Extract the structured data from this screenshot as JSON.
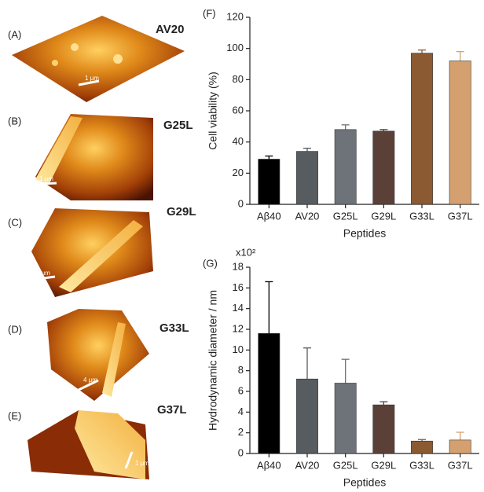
{
  "images": [
    {
      "label": "(A)",
      "name": "AV20",
      "scale_bar": "1 μm"
    },
    {
      "label": "(B)",
      "name": "G25L",
      "scale_bar": "1 μm"
    },
    {
      "label": "(C)",
      "name": "G29L",
      "scale_bar": "2 μm"
    },
    {
      "label": "(D)",
      "name": "G33L",
      "scale_bar": "4 μm"
    },
    {
      "label": "(E)",
      "name": "G37L",
      "scale_bar": "1 μm"
    }
  ],
  "chart_data": [
    {
      "type": "bar",
      "panel_label": "(F)",
      "y_label": "Cell viability (%)",
      "x_label": "Peptides",
      "categories": [
        "Aβ40",
        "AV20",
        "G25L",
        "G29L",
        "G33L",
        "G37L"
      ],
      "values": [
        29,
        34,
        48,
        47,
        97,
        92
      ],
      "errors": [
        2,
        2,
        3,
        1,
        2,
        6
      ],
      "colors": [
        "#000000",
        "#575c60",
        "#6d7378",
        "#5b4038",
        "#8b5a33",
        "#d4a070"
      ],
      "ylim": [
        0,
        120
      ],
      "yticks": [
        0,
        20,
        40,
        60,
        80,
        100,
        120
      ]
    },
    {
      "type": "bar",
      "panel_label": "(G)",
      "y_label": "Hydrodynamic diameter  / nm",
      "x_label": "Peptides",
      "y_multiplier": "x10²",
      "categories": [
        "Aβ40",
        "AV20",
        "G25L",
        "G29L",
        "G33L",
        "G37L"
      ],
      "values": [
        11.6,
        7.2,
        6.8,
        4.7,
        1.2,
        1.3
      ],
      "errors": [
        5.0,
        3.0,
        2.3,
        0.3,
        0.15,
        0.75
      ],
      "colors": [
        "#000000",
        "#575c60",
        "#6d7378",
        "#5b4038",
        "#8b5a33",
        "#d4a070"
      ],
      "ylim": [
        0,
        18
      ],
      "yticks": [
        0,
        2,
        4,
        6,
        8,
        10,
        12,
        14,
        16,
        18
      ]
    }
  ]
}
